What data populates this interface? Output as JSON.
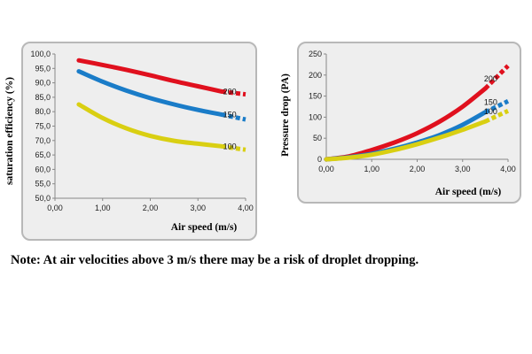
{
  "note": "Note: At air velocities above 3 m/s there may be a risk of droplet dropping.",
  "chart_data": [
    {
      "type": "line",
      "xlabel": "Air speed  (m/s)",
      "ylabel": "saturation efficiency (%)",
      "xlim": [
        0,
        4
      ],
      "ylim": [
        50,
        100
      ],
      "x_ticks": [
        "0,00",
        "1,00",
        "2,00",
        "3,00",
        "4,00"
      ],
      "y_ticks": [
        "50,0",
        "55,0",
        "60,0",
        "65,0",
        "70,0",
        "75,0",
        "80,0",
        "85,0",
        "90,0",
        "95,0",
        "100,0"
      ],
      "grid": false,
      "series": [
        {
          "name": "200",
          "color": "#e0101e",
          "x": [
            0.5,
            1.0,
            1.5,
            2.0,
            2.5,
            3.0,
            3.5
          ],
          "y": [
            97.8,
            96.2,
            94.5,
            92.6,
            90.6,
            88.8,
            87.0
          ],
          "extension": {
            "x": [
              3.5,
              4.0
            ],
            "y": [
              87.0,
              86.0
            ]
          }
        },
        {
          "name": "150",
          "color": "#1a7cc8",
          "x": [
            0.5,
            1.0,
            1.5,
            2.0,
            2.5,
            3.0,
            3.5
          ],
          "y": [
            94.0,
            90.4,
            87.3,
            84.7,
            82.5,
            80.6,
            79.0
          ],
          "extension": {
            "x": [
              3.5,
              4.0
            ],
            "y": [
              79.0,
              77.3
            ]
          }
        },
        {
          "name": "100",
          "color": "#d9cf12",
          "x": [
            0.5,
            1.0,
            1.5,
            2.0,
            2.5,
            3.0,
            3.5
          ],
          "y": [
            82.5,
            77.8,
            74.2,
            71.6,
            69.9,
            68.9,
            68.0
          ],
          "extension": {
            "x": [
              3.5,
              4.0
            ],
            "y": [
              68.0,
              66.8
            ]
          }
        }
      ]
    },
    {
      "type": "line",
      "xlabel": "Air speed (m/s)",
      "ylabel": "Pressure drop (PA)",
      "xlim": [
        0,
        4
      ],
      "ylim": [
        0,
        250
      ],
      "x_ticks": [
        "0,00",
        "1,00",
        "2,00",
        "3,00",
        "4,00"
      ],
      "y_ticks": [
        "0",
        "50",
        "100",
        "150",
        "200",
        "250"
      ],
      "grid": false,
      "series": [
        {
          "name": "200",
          "color": "#e0101e",
          "x": [
            0,
            0.5,
            1.0,
            1.5,
            2.0,
            2.5,
            3.0,
            3.5
          ],
          "y": [
            0,
            7,
            22,
            40,
            62,
            90,
            125,
            168
          ],
          "extension": {
            "x": [
              3.5,
              4.0
            ],
            "y": [
              168,
              222
            ]
          }
        },
        {
          "name": "150",
          "color": "#1a7cc8",
          "x": [
            0,
            0.5,
            1.0,
            1.5,
            2.0,
            2.5,
            3.0,
            3.5
          ],
          "y": [
            0,
            5,
            13,
            25,
            40,
            58,
            82,
            112
          ],
          "extension": {
            "x": [
              3.5,
              4.0
            ],
            "y": [
              112,
              138
            ]
          }
        },
        {
          "name": "100",
          "color": "#d9cf12",
          "x": [
            0,
            0.5,
            1.0,
            1.5,
            2.0,
            2.5,
            3.0,
            3.5
          ],
          "y": [
            0,
            4,
            11,
            22,
            36,
            52,
            70,
            90
          ],
          "extension": {
            "x": [
              3.5,
              4.0
            ],
            "y": [
              90,
              115
            ]
          }
        }
      ]
    }
  ]
}
